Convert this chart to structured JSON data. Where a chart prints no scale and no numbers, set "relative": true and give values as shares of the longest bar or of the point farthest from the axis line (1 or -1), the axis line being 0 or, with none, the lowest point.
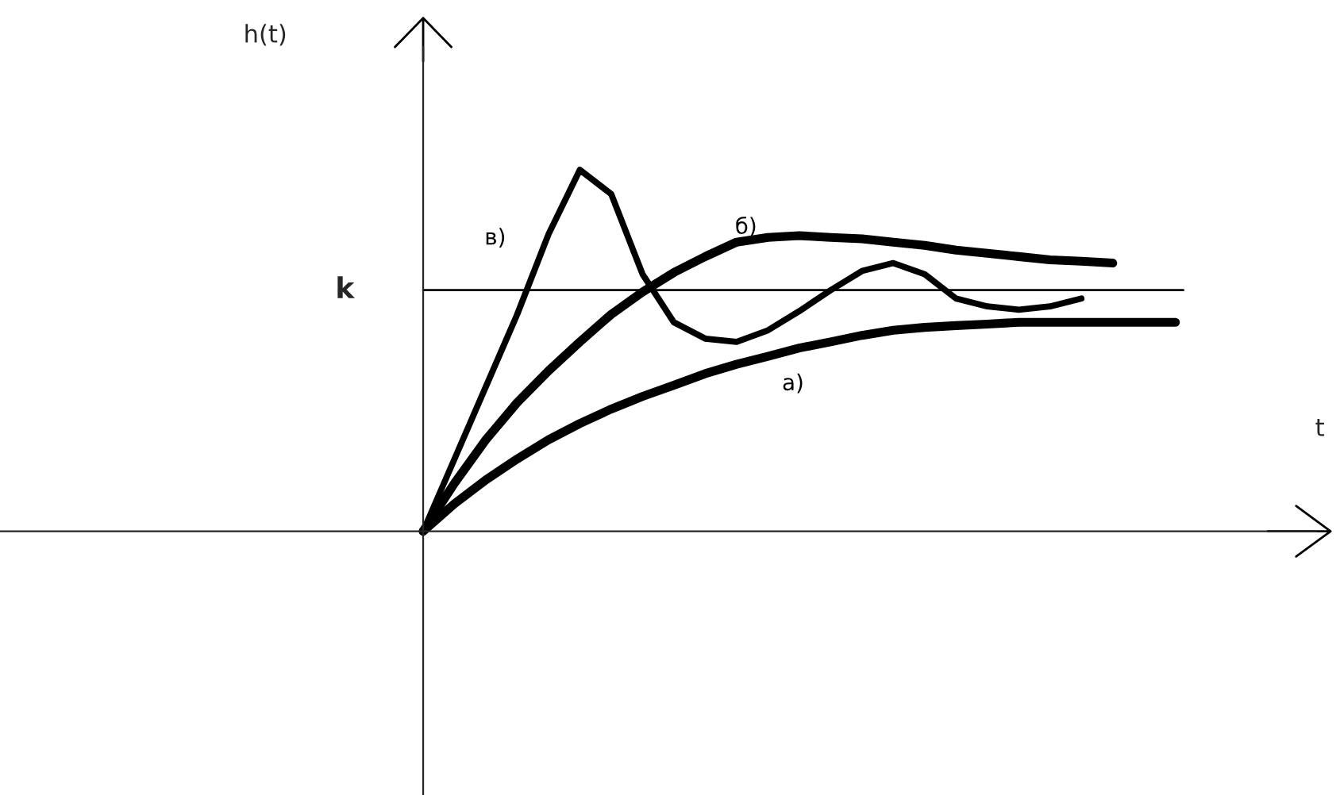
{
  "chart_data": {
    "type": "line",
    "relative": true,
    "annotations": [
      "h(t)",
      "t"
    ],
    "categories": [
      null,
      null,
      null,
      null,
      null,
      null,
      null,
      null,
      null,
      null,
      null,
      null,
      null,
      null,
      null,
      null,
      null,
      null,
      null,
      null,
      null,
      null,
      null,
      null,
      null
    ],
    "series": [
      {
        "name": "а)",
        "color": "#000000",
        "values": [
          0,
          0.076,
          0.142,
          0.2,
          0.253,
          0.298,
          0.338,
          0.373,
          0.404,
          0.436,
          0.462,
          0.484,
          0.507,
          0.524,
          0.542,
          0.556,
          0.564,
          0.569,
          0.573,
          0.578,
          0.578,
          0.578,
          0.578,
          0.578,
          0.578
        ]
      },
      {
        "name": "б)",
        "color": "#000000",
        "values": [
          0,
          0.133,
          0.253,
          0.356,
          0.444,
          0.524,
          0.6,
          0.662,
          0.716,
          0.76,
          0.8,
          0.813,
          0.818,
          0.813,
          0.809,
          0.8,
          0.791,
          0.778,
          0.769,
          0.76,
          0.751,
          0.747,
          0.742,
          null,
          null
        ]
      },
      {
        "name": "в)",
        "color": "#000000",
        "values": [
          0,
          0.2,
          0.4,
          0.6,
          0.822,
          1,
          0.933,
          0.711,
          0.578,
          0.533,
          0.524,
          0.556,
          0.609,
          0.667,
          0.72,
          0.742,
          0.711,
          0.644,
          0.622,
          0.613,
          0.622,
          0.644,
          null,
          null,
          null
        ]
      }
    ],
    "ref_lines": [
      {
        "axis": "y",
        "value": 0.667,
        "label": "k",
        "color": "#000000"
      }
    ],
    "legend": false
  }
}
